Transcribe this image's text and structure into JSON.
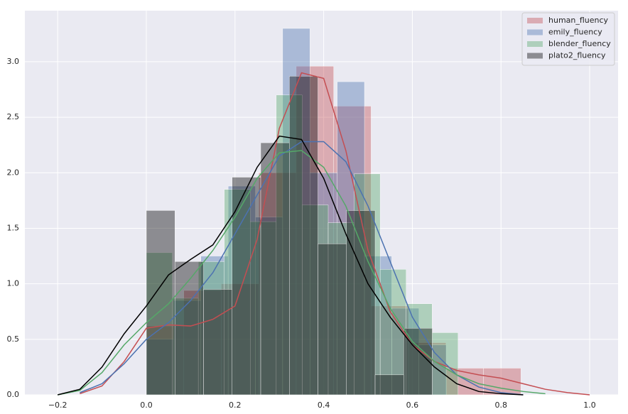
{
  "chart_data": {
    "type": "distplot",
    "xlim": [
      -0.274,
      1.064
    ],
    "ylim": [
      0,
      3.46
    ],
    "xticks": [
      {
        "value": -0.2,
        "label": "−0.2"
      },
      {
        "value": 0.0,
        "label": "0.0"
      },
      0.2,
      0.4,
      0.6,
      0.8,
      {
        "value": 1.0,
        "label": "1.0"
      }
    ],
    "yticks": [
      {
        "value": 0.0,
        "label": "0.0"
      },
      0.5,
      {
        "value": 1.0,
        "label": "1.0"
      },
      1.5,
      {
        "value": 2.0,
        "label": "2.0"
      },
      2.5,
      {
        "value": 3.0,
        "label": "3.0"
      }
    ],
    "grid": true,
    "legend": "upper right",
    "kde_x": [
      -0.2,
      -0.15,
      -0.1,
      -0.05,
      0,
      0.05,
      0.1,
      0.15,
      0.2,
      0.25,
      0.3,
      0.35,
      0.4,
      0.45,
      0.5,
      0.55,
      0.6,
      0.65,
      0.7,
      0.75,
      0.8,
      0.85,
      0.9,
      0.95,
      1.0
    ],
    "series": [
      {
        "name": "human_fluency",
        "color": "#c44e52",
        "bins": [
          0,
          0.0845,
          0.169,
          0.2535,
          0.338,
          0.4225,
          0.507,
          0.5915,
          0.676,
          0.7605,
          0.845
        ],
        "values": [
          0.62,
          0.94,
          1.0,
          2.0,
          2.96,
          2.6,
          0.8,
          0.47,
          0.24,
          0.24
        ],
        "kde": [
          null,
          0.01,
          0.08,
          0.3,
          0.6,
          0.63,
          0.62,
          0.68,
          0.8,
          1.4,
          2.4,
          2.9,
          2.85,
          2.2,
          1.3,
          0.75,
          0.45,
          0.3,
          0.22,
          0.18,
          0.15,
          0.1,
          0.05,
          0.02,
          0.0
        ]
      },
      {
        "name": "emily_fluency",
        "color": "#4c72b0",
        "bins": [
          0,
          0.0615,
          0.123,
          0.1845,
          0.246,
          0.3075,
          0.369,
          0.4305,
          0.492,
          0.5535,
          0.615,
          0.6765
        ],
        "values": [
          0.5,
          0.85,
          1.25,
          1.88,
          1.6,
          3.3,
          2.0,
          2.82,
          1.25,
          0.78,
          0.45
        ],
        "kde": [
          null,
          0.02,
          0.1,
          0.28,
          0.5,
          0.65,
          0.85,
          1.1,
          1.45,
          1.8,
          2.15,
          2.28,
          2.28,
          2.1,
          1.7,
          1.2,
          0.7,
          0.38,
          0.18,
          0.07,
          0.02,
          0.0,
          null,
          null,
          null
        ]
      },
      {
        "name": "blender_fluency",
        "color": "#55a868",
        "bins": [
          0,
          0.0586,
          0.1172,
          0.1758,
          0.2344,
          0.293,
          0.3516,
          0.4102,
          0.4688,
          0.5274,
          0.586,
          0.6446,
          0.7032
        ],
        "values": [
          1.28,
          0.87,
          1.2,
          1.85,
          1.56,
          2.7,
          1.71,
          1.55,
          1.99,
          1.13,
          0.82,
          0.56
        ],
        "kde": [
          0.0,
          0.04,
          0.2,
          0.45,
          0.65,
          0.82,
          1.05,
          1.3,
          1.6,
          1.95,
          2.18,
          2.2,
          2.05,
          1.7,
          1.2,
          0.78,
          0.48,
          0.3,
          0.18,
          0.1,
          0.06,
          0.03,
          0.01,
          null,
          null
        ]
      },
      {
        "name": "plato2_fluency",
        "color": "#000000",
        "bins": [
          0,
          0.0645,
          0.129,
          0.1935,
          0.258,
          0.3225,
          0.387,
          0.4515,
          0.516,
          0.5805,
          0.645
        ],
        "values": [
          1.66,
          1.2,
          0.95,
          1.96,
          2.27,
          2.87,
          1.36,
          1.66,
          0.18,
          0.6
        ],
        "kde": [
          0.0,
          0.05,
          0.25,
          0.55,
          0.8,
          1.08,
          1.22,
          1.35,
          1.65,
          2.05,
          2.33,
          2.3,
          1.95,
          1.45,
          1.0,
          0.7,
          0.45,
          0.25,
          0.1,
          0.03,
          0.01,
          0.0,
          null,
          null,
          null
        ]
      }
    ]
  }
}
